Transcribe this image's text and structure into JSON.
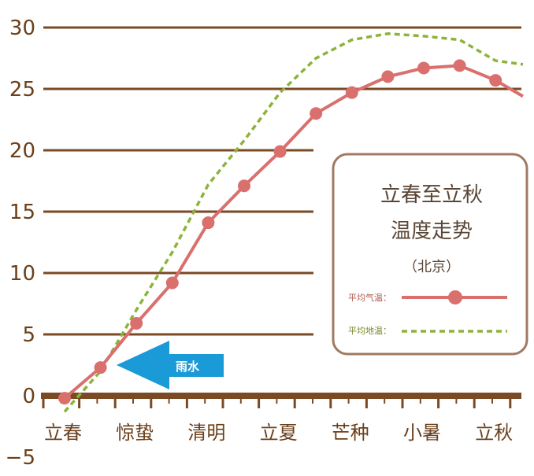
{
  "chart_data": {
    "type": "line",
    "title": "立春至立秋",
    "subtitle": "温度走势",
    "location": "（北京）",
    "ylim": [
      -5,
      30
    ],
    "yticks": [
      "30",
      "25",
      "20",
      "15",
      "10",
      "5",
      "0",
      "−5"
    ],
    "ytick_values": [
      30,
      25,
      20,
      15,
      10,
      5,
      0,
      -5
    ],
    "x_labels": [
      "立春",
      "惊蛰",
      "清明",
      "立夏",
      "芒种",
      "小暑",
      "立秋"
    ],
    "x_label_index": [
      0,
      2,
      4,
      6,
      8,
      10,
      12
    ],
    "grid": true,
    "legend_position": "right",
    "series": [
      {
        "name": "平均气温",
        "style": "solid-markers",
        "color": "#d9706d",
        "x": [
          0,
          1,
          2,
          3,
          4,
          5,
          6,
          7,
          8,
          9,
          10,
          11,
          12
        ],
        "values": [
          -0.2,
          2.3,
          5.9,
          9.2,
          14.1,
          17.1,
          19.9,
          23.0,
          24.7,
          26.0,
          26.7,
          26.9,
          25.7
        ]
      },
      {
        "name": "平均地温",
        "style": "dashed",
        "color": "#8db33a",
        "x": [
          0,
          1,
          2,
          3,
          4,
          5,
          6,
          7,
          8,
          9,
          10,
          11,
          12
        ],
        "values": [
          -1.3,
          2.0,
          7.0,
          11.7,
          17.2,
          20.8,
          24.7,
          27.5,
          29.0,
          29.5,
          29.3,
          29.0,
          27.3
        ]
      }
    ],
    "annotation": {
      "text": "雨水",
      "color": "#1a9ad6"
    }
  },
  "colors": {
    "axis": "#7a4a24",
    "grid": "#7a4a24",
    "legend_border": "#a07a62"
  }
}
